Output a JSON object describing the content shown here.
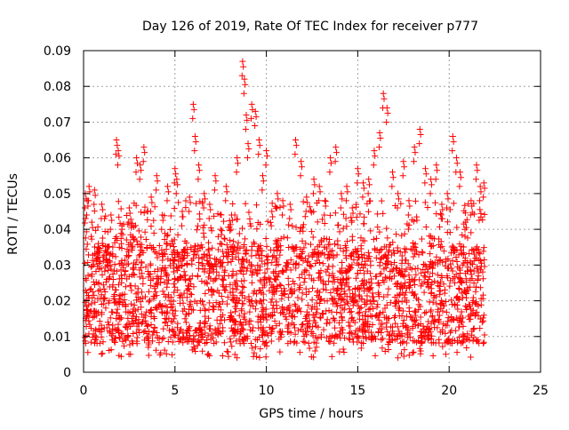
{
  "chart_data": {
    "type": "scatter",
    "title": "Day 126 of 2019, Rate Of TEC Index for receiver p777",
    "xlabel": "GPS time / hours",
    "ylabel": "ROTI / TECUs",
    "xlim": [
      0,
      25
    ],
    "ylim": [
      0,
      0.09
    ],
    "x_ticks": [
      0,
      5,
      10,
      15,
      20,
      25
    ],
    "x_tick_labels": [
      "0",
      "5",
      "10",
      "15",
      "20",
      "25"
    ],
    "y_ticks": [
      0,
      0.01,
      0.02,
      0.03,
      0.04,
      0.05,
      0.06,
      0.07,
      0.08,
      0.09
    ],
    "y_tick_labels": [
      "0",
      "0.01",
      "0.02",
      "0.03",
      "0.04",
      "0.05",
      "0.06",
      "0.07",
      "0.08",
      "0.09"
    ],
    "grid": true,
    "marker": "plus",
    "series": [
      {
        "color": "#ff0000",
        "x": [
          0.1,
          0.2,
          0.3,
          0.45,
          0.6,
          0.8,
          1.0,
          1.3,
          1.5,
          1.8,
          1.9,
          2.1,
          2.5,
          2.9,
          3.1,
          3.3,
          3.7,
          4.0,
          4.3,
          4.6,
          5.0,
          5.1,
          5.4,
          5.8,
          6.0,
          6.1,
          6.3,
          6.6,
          6.9,
          7.2,
          7.5,
          7.8,
          8.1,
          8.4,
          8.7,
          8.8,
          8.9,
          9.0,
          9.2,
          9.4,
          9.6,
          9.8,
          10.0,
          10.3,
          10.6,
          10.9,
          11.3,
          11.6,
          11.9,
          12.2,
          12.6,
          12.9,
          13.2,
          13.5,
          13.8,
          14.1,
          14.4,
          14.7,
          15.0,
          15.3,
          15.6,
          15.9,
          16.2,
          16.4,
          16.6,
          16.9,
          17.2,
          17.5,
          17.8,
          18.1,
          18.4,
          18.7,
          19.0,
          19.3,
          19.6,
          19.9,
          20.2,
          20.4,
          20.6,
          20.9,
          21.2,
          21.5,
          21.7,
          21.9
        ],
        "y": [
          0.05,
          0.048,
          0.052,
          0.042,
          0.051,
          0.036,
          0.047,
          0.03,
          0.044,
          0.065,
          0.062,
          0.04,
          0.046,
          0.06,
          0.058,
          0.063,
          0.049,
          0.055,
          0.044,
          0.052,
          0.057,
          0.054,
          0.045,
          0.049,
          0.075,
          0.066,
          0.058,
          0.05,
          0.047,
          0.055,
          0.04,
          0.052,
          0.044,
          0.06,
          0.087,
          0.082,
          0.072,
          0.064,
          0.075,
          0.073,
          0.065,
          0.055,
          0.062,
          0.045,
          0.05,
          0.048,
          0.047,
          0.065,
          0.059,
          0.049,
          0.054,
          0.052,
          0.048,
          0.06,
          0.063,
          0.05,
          0.052,
          0.046,
          0.057,
          0.053,
          0.054,
          0.062,
          0.067,
          0.078,
          0.074,
          0.056,
          0.05,
          0.059,
          0.048,
          0.063,
          0.068,
          0.057,
          0.054,
          0.058,
          0.047,
          0.05,
          0.066,
          0.06,
          0.056,
          0.042,
          0.048,
          0.058,
          0.052,
          0.053
        ],
        "density_model": {
          "x_range": [
            0.05,
            21.95
          ],
          "baseline_lower": 0.008,
          "baseline_median": 0.021,
          "baseline_upper": 0.035,
          "observed_min": 0.004,
          "observed_max": 0.087,
          "approx_point_count": 2600
        }
      }
    ]
  }
}
